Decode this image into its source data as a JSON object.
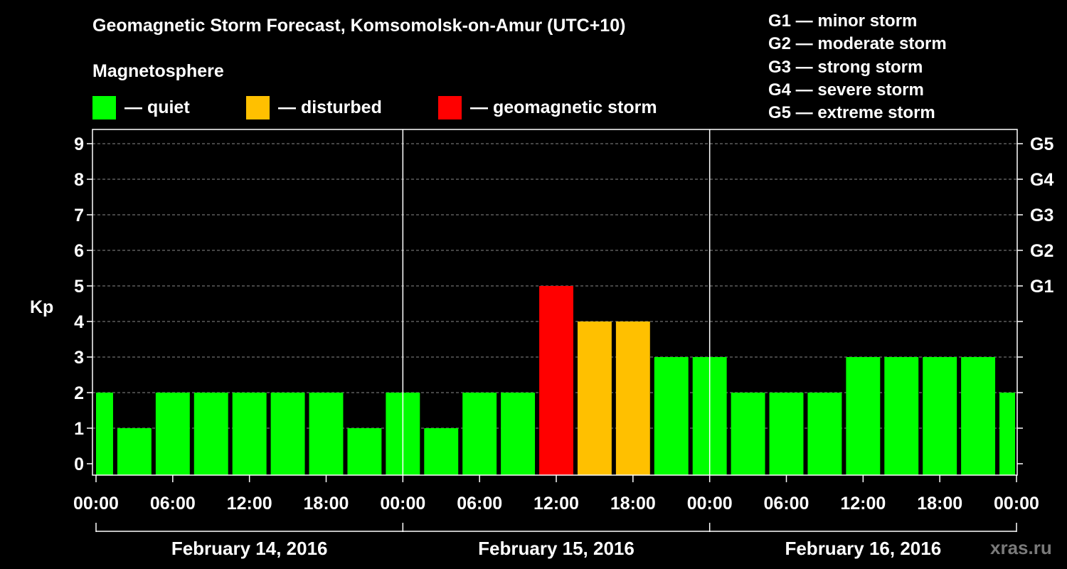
{
  "chart_data": {
    "type": "bar",
    "title": "Geomagnetic Storm Forecast, Komsomolsk-on-Amur (UTC+10)",
    "subtitle": "Magnetosphere",
    "ylabel": "Kp",
    "ylim": [
      0,
      9
    ],
    "y_ticks": [
      "0",
      "1",
      "2",
      "3",
      "4",
      "5",
      "6",
      "7",
      "8",
      "9"
    ],
    "right_axis_labels": [
      {
        "kp": 5,
        "label": "G1"
      },
      {
        "kp": 6,
        "label": "G2"
      },
      {
        "kp": 7,
        "label": "G3"
      },
      {
        "kp": 8,
        "label": "G4"
      },
      {
        "kp": 9,
        "label": "G5"
      }
    ],
    "x_tick_labels": [
      "00:00",
      "06:00",
      "12:00",
      "18:00",
      "00:00",
      "06:00",
      "12:00",
      "18:00",
      "00:00",
      "06:00",
      "12:00",
      "18:00",
      "00:00"
    ],
    "dates": [
      "February 14, 2016",
      "February 15, 2016",
      "February 16, 2016"
    ],
    "bars": [
      {
        "hours": 0,
        "value": 2,
        "status": "quiet"
      },
      {
        "hours": 3,
        "value": 1,
        "status": "quiet"
      },
      {
        "hours": 6,
        "value": 2,
        "status": "quiet"
      },
      {
        "hours": 9,
        "value": 2,
        "status": "quiet"
      },
      {
        "hours": 12,
        "value": 2,
        "status": "quiet"
      },
      {
        "hours": 15,
        "value": 2,
        "status": "quiet"
      },
      {
        "hours": 18,
        "value": 2,
        "status": "quiet"
      },
      {
        "hours": 21,
        "value": 1,
        "status": "quiet"
      },
      {
        "hours": 24,
        "value": 2,
        "status": "quiet"
      },
      {
        "hours": 27,
        "value": 1,
        "status": "quiet"
      },
      {
        "hours": 30,
        "value": 2,
        "status": "quiet"
      },
      {
        "hours": 33,
        "value": 2,
        "status": "quiet"
      },
      {
        "hours": 36,
        "value": 5,
        "status": "storm"
      },
      {
        "hours": 39,
        "value": 4,
        "status": "disturbed"
      },
      {
        "hours": 42,
        "value": 4,
        "status": "disturbed"
      },
      {
        "hours": 45,
        "value": 3,
        "status": "quiet"
      },
      {
        "hours": 48,
        "value": 3,
        "status": "quiet"
      },
      {
        "hours": 51,
        "value": 2,
        "status": "quiet"
      },
      {
        "hours": 54,
        "value": 2,
        "status": "quiet"
      },
      {
        "hours": 57,
        "value": 2,
        "status": "quiet"
      },
      {
        "hours": 60,
        "value": 3,
        "status": "quiet"
      },
      {
        "hours": 63,
        "value": 3,
        "status": "quiet"
      },
      {
        "hours": 66,
        "value": 3,
        "status": "quiet"
      },
      {
        "hours": 69,
        "value": 3,
        "status": "quiet"
      },
      {
        "hours": 72,
        "value": 2,
        "status": "quiet"
      }
    ],
    "x_range_hours": [
      0,
      72
    ],
    "grid": true
  },
  "legend": [
    {
      "key": "quiet",
      "label": "— quiet",
      "color": "#00ff00"
    },
    {
      "key": "disturbed",
      "label": "— disturbed",
      "color": "#ffc000"
    },
    {
      "key": "storm",
      "label": "— geomagnetic storm",
      "color": "#ff0000"
    }
  ],
  "g_scale": [
    "G1 — minor storm",
    "G2 — moderate storm",
    "G3 — strong storm",
    "G4 — severe storm",
    "G5 — extreme storm"
  ],
  "watermark": "xras.ru",
  "colors": {
    "background": "#000000",
    "axis": "#ffffff",
    "grid": "#8a8a8a"
  }
}
